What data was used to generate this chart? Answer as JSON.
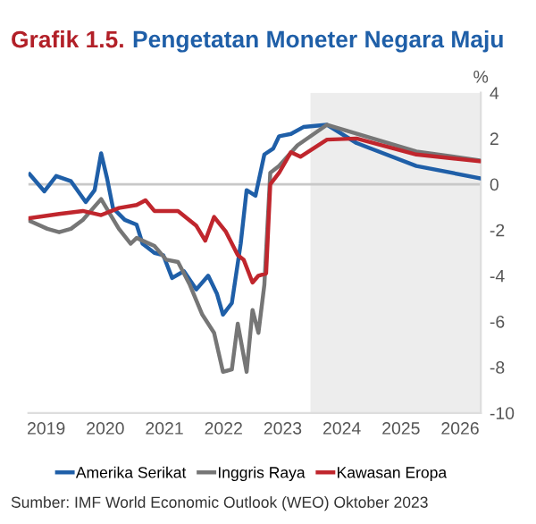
{
  "chart_data": {
    "type": "line",
    "title": "Grafik 1.5.",
    "subtitle": "Pengetatan Moneter Negara Maju",
    "ylabel": "%",
    "annotations": [
      "Sumber: IMF World Economic Outlook (WEO) Oktober 2023"
    ],
    "series": [
      {
        "name": "Amerika Serikat",
        "color": "#1f5fa8",
        "x": [
          2018.72,
          2018.97,
          2019.17,
          2019.42,
          2019.67,
          2019.82,
          2019.93,
          2020.03,
          2020.13,
          2020.33,
          2020.53,
          2020.63,
          2020.83,
          2020.98,
          2021.13,
          2021.33,
          2021.54,
          2021.74,
          2021.89,
          2021.99,
          2022.14,
          2022.29,
          2022.39,
          2022.54,
          2022.69,
          2022.84,
          2022.94,
          2023.14,
          2023.35,
          2023.75,
          2024.25,
          2025.26,
          2026.34
        ],
        "values": [
          0.44,
          -0.31,
          0.36,
          0.13,
          -0.78,
          -0.26,
          1.35,
          0.26,
          -1.04,
          -1.56,
          -1.77,
          -2.6,
          -3.0,
          -3.1,
          -4.1,
          -3.8,
          -4.6,
          -4.0,
          -4.8,
          -5.7,
          -5.2,
          -2.6,
          -0.26,
          -0.5,
          1.3,
          1.56,
          2.1,
          2.2,
          2.5,
          2.6,
          1.8,
          0.8,
          0.26
        ]
      },
      {
        "name": "Inggris Raya",
        "color": "#767676",
        "x": [
          2018.72,
          2019.02,
          2019.22,
          2019.42,
          2019.62,
          2019.93,
          2020.08,
          2020.23,
          2020.43,
          2020.53,
          2020.83,
          2021.03,
          2021.23,
          2021.43,
          2021.64,
          2021.84,
          2021.99,
          2022.14,
          2022.24,
          2022.39,
          2022.49,
          2022.59,
          2022.69,
          2022.79,
          2022.94,
          2023.25,
          2023.75,
          2025.26,
          2026.34
        ],
        "values": [
          -1.6,
          -1.95,
          -2.1,
          -1.95,
          -1.56,
          -0.65,
          -1.3,
          -1.95,
          -2.6,
          -2.35,
          -2.7,
          -3.3,
          -3.4,
          -4.4,
          -5.7,
          -6.5,
          -8.2,
          -8.1,
          -6.1,
          -8.2,
          -5.5,
          -6.5,
          -4.4,
          0.5,
          0.8,
          1.7,
          2.6,
          1.43,
          1.04
        ]
      },
      {
        "name": "Kawasan Eropa",
        "color": "#c0262d",
        "x": [
          2018.72,
          2019.22,
          2019.62,
          2019.93,
          2020.23,
          2020.53,
          2020.68,
          2020.83,
          2021.23,
          2021.54,
          2021.69,
          2021.84,
          2022.04,
          2022.24,
          2022.34,
          2022.49,
          2022.59,
          2022.72,
          2022.79,
          2022.94,
          2023.14,
          2023.3,
          2023.75,
          2024.25,
          2025.26,
          2026.34
        ],
        "values": [
          -1.48,
          -1.3,
          -1.17,
          -1.35,
          -1.04,
          -0.91,
          -0.7,
          -1.17,
          -1.17,
          -1.82,
          -2.47,
          -1.43,
          -2.08,
          -3.1,
          -3.3,
          -4.3,
          -4.0,
          -3.9,
          0,
          0.5,
          1.4,
          1.2,
          1.95,
          2.0,
          1.3,
          1.0
        ]
      }
    ],
    "xlim": [
      2018.7,
      2026.35
    ],
    "xticks": [
      2019,
      2020,
      2021,
      2022,
      2023,
      2024,
      2025,
      2026
    ],
    "ylim": [
      -10,
      4
    ],
    "yticks": [
      -10,
      -8,
      -6,
      -4,
      -2,
      0,
      2,
      4
    ],
    "ref_lines": [
      {
        "axis": "y",
        "value": 0,
        "color": "#c8c8c8"
      }
    ],
    "bands": [
      {
        "axis": "x",
        "from": 2023.47,
        "to": 2026.35,
        "color": "#ededed"
      }
    ],
    "legend": "bottom",
    "grid": false,
    "marker": "none",
    "line_style": "solid"
  }
}
